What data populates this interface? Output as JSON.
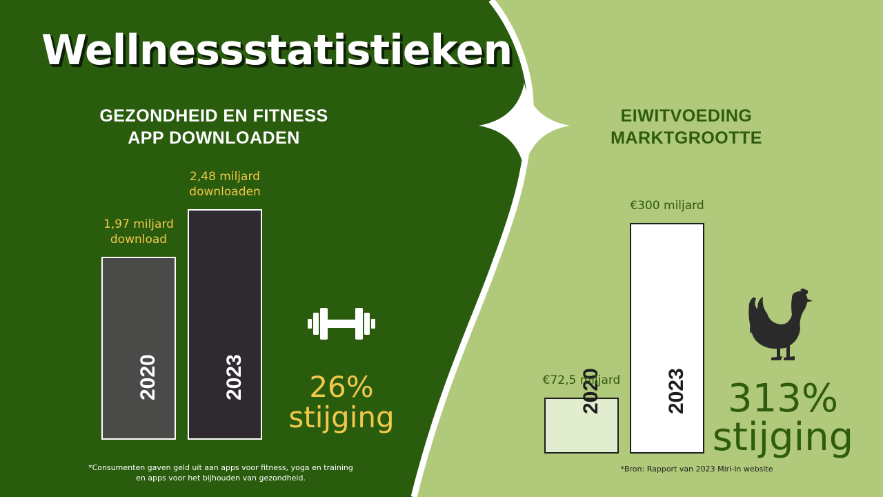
{
  "title": "Wellnessstatistieken",
  "colors": {
    "left_bg": "#2a5c0e",
    "right_bg": "#b0c97a",
    "accent_yellow": "#f2c84b",
    "dark_green_text": "#2e5b0e",
    "left_bar_2020": "#4a4a48",
    "left_bar_2023": "#2e2a30",
    "right_bar_2020": "#e2edd0",
    "right_bar_2023": "#ffffff"
  },
  "left_panel": {
    "heading": [
      "GEZONDHEID EN FITNESS",
      "APP DOWNLOADEN"
    ],
    "increase_number": "26%",
    "increase_word": "stijging",
    "footnote": [
      "*Consumenten gaven geld uit aan apps voor fitness, yoga en training",
      "en apps voor het bijhouden van gezondheid."
    ],
    "icon": "dumbbell-icon"
  },
  "right_panel": {
    "heading": [
      "EIWITVOEDING",
      "MARKTGROOTTE"
    ],
    "increase_number": "313%",
    "increase_word": "stijging",
    "footnote": [
      "*Bron: Rapport van 2023 Miri-In website"
    ],
    "icon": "chicken-icon"
  },
  "chart_data": [
    {
      "type": "bar",
      "title": "GEZONDHEID EN FITNESS APP DOWNLOADEN",
      "categories": [
        "2020",
        "2023"
      ],
      "values": [
        1.97,
        2.48
      ],
      "data_labels": [
        [
          "1,97 miljard",
          "download"
        ],
        [
          "2,48 miljard",
          "downloaden"
        ]
      ],
      "unit": "miljard downloads",
      "ylim": [
        0,
        2.48
      ],
      "grid": false
    },
    {
      "type": "bar",
      "title": "EIWITVOEDING MARKTGROOTTE",
      "categories": [
        "2020",
        "2023"
      ],
      "values": [
        72.5,
        300
      ],
      "data_labels": [
        [
          "€72,5 miljard"
        ],
        [
          "€300 miljard"
        ]
      ],
      "unit": "miljard euro",
      "ylim": [
        0,
        300
      ],
      "grid": false
    }
  ]
}
